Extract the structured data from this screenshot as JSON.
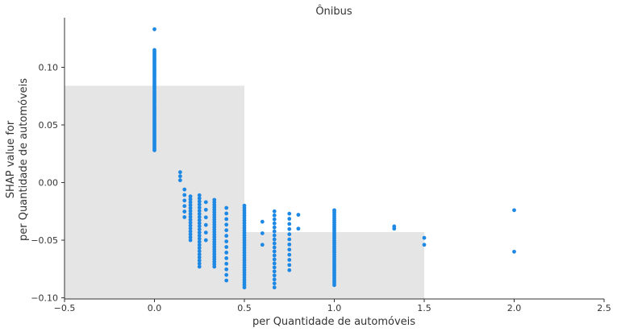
{
  "chart_data": {
    "type": "scatter",
    "title": "Ônibus",
    "xlabel": "per Quantidade de automóveis",
    "ylabel_lines": [
      "SHAP value for",
      "per Quantidade de automóveis"
    ],
    "xlim": [
      -0.5,
      2.5
    ],
    "ylim": [
      -0.101,
      0.143
    ],
    "xticks": [
      -0.5,
      0.0,
      0.5,
      1.0,
      1.5,
      2.0,
      2.5
    ],
    "xtick_labels": [
      "−0.5",
      "0.0",
      "0.5",
      "1.0",
      "1.5",
      "2.0",
      "2.5"
    ],
    "yticks": [
      -0.1,
      -0.05,
      0.0,
      0.05,
      0.1
    ],
    "ytick_labels": [
      "−0.10",
      "−0.05",
      "0.00",
      "0.05",
      "0.10"
    ],
    "grid": false,
    "point_color": "#1e88e5",
    "background_bars": {
      "color": "#e5e5e5",
      "bars": [
        {
          "x0": -0.5,
          "x1": 0.5,
          "y_top": 0.084
        },
        {
          "x0": 0.5,
          "x1": 1.5,
          "y_top": -0.043
        }
      ]
    },
    "point_columns": [
      {
        "x": 0.0,
        "ymin": 0.028,
        "ymax": 0.115,
        "n": 60
      },
      {
        "x": 0.0,
        "ymin": 0.133,
        "ymax": 0.133,
        "n": 1
      },
      {
        "x": 0.143,
        "ymin": 0.002,
        "ymax": 0.009,
        "n": 3
      },
      {
        "x": 0.167,
        "ymin": -0.03,
        "ymax": -0.006,
        "n": 6
      },
      {
        "x": 0.2,
        "ymin": -0.05,
        "ymax": -0.012,
        "n": 16
      },
      {
        "x": 0.25,
        "ymin": -0.073,
        "ymax": -0.011,
        "n": 24
      },
      {
        "x": 0.286,
        "ymin": -0.05,
        "ymax": -0.017,
        "n": 6
      },
      {
        "x": 0.333,
        "ymin": -0.073,
        "ymax": -0.015,
        "n": 28
      },
      {
        "x": 0.4,
        "ymin": -0.085,
        "ymax": -0.022,
        "n": 14
      },
      {
        "x": 0.5,
        "ymin": -0.091,
        "ymax": -0.02,
        "n": 34
      },
      {
        "x": 0.6,
        "ymin": -0.054,
        "ymax": -0.034,
        "n": 3
      },
      {
        "x": 0.667,
        "ymin": -0.091,
        "ymax": -0.025,
        "n": 20
      },
      {
        "x": 0.75,
        "ymin": -0.076,
        "ymax": -0.027,
        "n": 12
      },
      {
        "x": 0.8,
        "ymin": -0.04,
        "ymax": -0.028,
        "n": 2
      },
      {
        "x": 1.0,
        "ymin": -0.089,
        "ymax": -0.024,
        "n": 38
      },
      {
        "x": 1.333,
        "ymin": -0.04,
        "ymax": -0.038,
        "n": 2
      },
      {
        "x": 1.5,
        "ymin": -0.054,
        "ymax": -0.048,
        "n": 2
      },
      {
        "x": 2.0,
        "ymin": -0.06,
        "ymax": -0.06,
        "n": 1
      },
      {
        "x": 2.0,
        "ymin": -0.024,
        "ymax": -0.024,
        "n": 1
      }
    ]
  }
}
